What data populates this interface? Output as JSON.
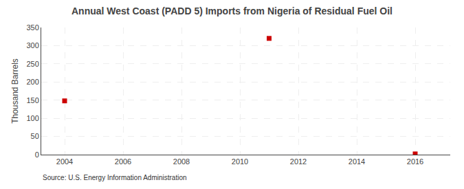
{
  "chart_data": {
    "type": "scatter",
    "title": "Annual West Coast (PADD 5) Imports from Nigeria of Residual Fuel Oil",
    "ylabel": "Thousand Barrels",
    "source": "Source: U.S. Energy Information Administration",
    "x": [
      2004,
      2011,
      2016
    ],
    "values": [
      148,
      320,
      2
    ],
    "color": "#cc0000",
    "marker": "square",
    "xlim": [
      2003.2,
      2017.2
    ],
    "ylim": [
      0,
      350
    ],
    "xticks": [
      2004,
      2006,
      2008,
      2010,
      2012,
      2014,
      2016
    ],
    "yticks": [
      0,
      50,
      100,
      150,
      200,
      250,
      300,
      350
    ],
    "grid": true
  }
}
